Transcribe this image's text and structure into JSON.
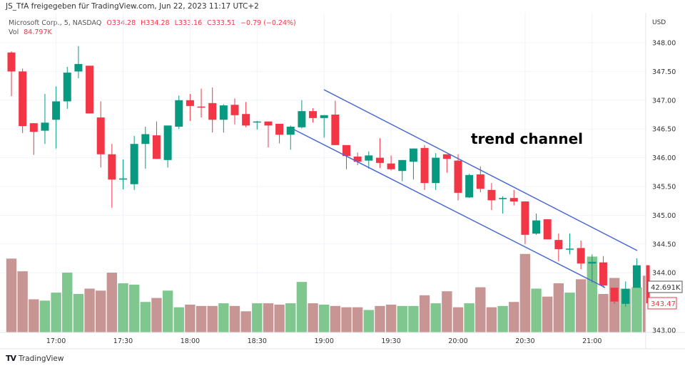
{
  "header": {
    "shared_by": "JS_TfA freigegeben für TradingView.com, Jun 22, 2023 11:17 UTC+2"
  },
  "legend": {
    "symbol": "Microsoft Corp., 5, NASDAQ",
    "open": "O334.28",
    "high": "H334.28",
    "low": "L333.16",
    "close": "C333.51",
    "change": "−0.79 (−0.24%)",
    "vol_label": "Vol",
    "vol_value": "84.797K"
  },
  "currency": "USD",
  "annotation": "trend channel",
  "price_label": "343.47",
  "volume_label": "42.691K",
  "footer": {
    "brand": "TradingView"
  },
  "colors": {
    "up": "#089981",
    "down": "#f23645",
    "vol_up": "#7fc78f",
    "vol_down": "#c89595",
    "trendline": "#4a68d0"
  },
  "chart_data": {
    "type": "candlestick",
    "ylim": [
      343.0,
      348.1
    ],
    "y_ticks": [
      "348.00",
      "347.50",
      "347.00",
      "346.50",
      "346.00",
      "345.50",
      "345.00",
      "344.50",
      "344.00",
      "343.00"
    ],
    "x_ticks": [
      {
        "label": "17:00",
        "index": 4
      },
      {
        "label": "17:30",
        "index": 10
      },
      {
        "label": "18:00",
        "index": 16
      },
      {
        "label": "18:30",
        "index": 22
      },
      {
        "label": "19:00",
        "index": 28
      },
      {
        "label": "19:30",
        "index": 34
      },
      {
        "label": "20:00",
        "index": 40
      },
      {
        "label": "20:30",
        "index": 46
      },
      {
        "label": "21:00",
        "index": 52
      }
    ],
    "ohlc": [
      [
        347.83,
        347.85,
        347.07,
        347.5
      ],
      [
        347.5,
        347.55,
        346.43,
        346.55
      ],
      [
        346.6,
        346.6,
        346.05,
        346.45
      ],
      [
        346.47,
        347.11,
        346.24,
        346.61
      ],
      [
        346.66,
        347.24,
        346.16,
        346.98
      ],
      [
        346.98,
        347.58,
        346.85,
        347.48
      ],
      [
        347.5,
        347.94,
        347.38,
        347.63
      ],
      [
        347.6,
        347.6,
        346.77,
        346.77
      ],
      [
        346.7,
        346.98,
        345.83,
        346.06
      ],
      [
        346.06,
        346.24,
        345.13,
        345.62
      ],
      [
        345.62,
        345.97,
        345.45,
        345.64
      ],
      [
        345.54,
        346.38,
        345.44,
        346.24
      ],
      [
        346.24,
        346.54,
        345.81,
        346.41
      ],
      [
        346.39,
        346.63,
        345.98,
        345.98
      ],
      [
        345.96,
        346.56,
        345.83,
        346.56
      ],
      [
        346.54,
        347.08,
        346.5,
        347.0
      ],
      [
        347.0,
        347.11,
        346.64,
        346.9
      ],
      [
        346.89,
        347.2,
        346.7,
        346.88
      ],
      [
        346.95,
        347.22,
        346.44,
        346.66
      ],
      [
        346.66,
        346.93,
        346.44,
        346.91
      ],
      [
        346.92,
        347.03,
        346.58,
        346.74
      ],
      [
        346.76,
        346.97,
        346.53,
        346.56
      ],
      [
        346.63,
        346.64,
        346.49,
        346.63
      ],
      [
        346.63,
        346.63,
        346.18,
        346.56
      ],
      [
        346.59,
        346.59,
        346.25,
        346.4
      ],
      [
        346.4,
        346.56,
        346.14,
        346.54
      ],
      [
        346.53,
        347.0,
        346.51,
        346.81
      ],
      [
        346.81,
        346.86,
        346.61,
        346.69
      ],
      [
        346.69,
        346.74,
        346.35,
        346.74
      ],
      [
        346.75,
        346.99,
        346.22,
        346.22
      ],
      [
        346.22,
        346.22,
        345.8,
        346.03
      ],
      [
        346.02,
        346.09,
        345.87,
        345.93
      ],
      [
        345.95,
        346.11,
        345.81,
        346.04
      ],
      [
        346.0,
        346.34,
        345.82,
        345.91
      ],
      [
        345.9,
        346.04,
        345.78,
        345.8
      ],
      [
        345.77,
        345.96,
        345.59,
        345.96
      ],
      [
        345.93,
        346.16,
        345.62,
        346.16
      ],
      [
        346.17,
        346.22,
        345.44,
        345.56
      ],
      [
        345.56,
        346.08,
        345.44,
        346.0
      ],
      [
        346.06,
        346.06,
        345.74,
        345.98
      ],
      [
        345.95,
        346.06,
        345.26,
        345.39
      ],
      [
        345.31,
        345.72,
        345.3,
        345.7
      ],
      [
        345.71,
        345.85,
        345.4,
        345.46
      ],
      [
        345.44,
        345.56,
        345.09,
        345.26
      ],
      [
        345.28,
        345.33,
        345.03,
        345.3
      ],
      [
        345.3,
        345.44,
        345.17,
        345.24
      ],
      [
        345.24,
        345.24,
        344.5,
        344.66
      ],
      [
        344.68,
        345.03,
        344.66,
        344.91
      ],
      [
        344.93,
        344.93,
        344.58,
        344.58
      ],
      [
        344.57,
        344.68,
        344.2,
        344.41
      ],
      [
        344.41,
        344.68,
        344.32,
        344.42
      ],
      [
        344.43,
        344.56,
        344.06,
        344.16
      ],
      [
        344.16,
        344.32,
        343.83,
        344.19
      ],
      [
        344.18,
        344.29,
        343.74,
        343.78
      ],
      [
        343.74,
        343.74,
        343.46,
        343.5
      ],
      [
        343.46,
        343.85,
        343.41,
        343.72
      ],
      [
        343.74,
        344.25,
        343.74,
        344.13
      ],
      [
        344.13,
        344.13,
        343.47,
        343.47
      ]
    ],
    "volume_k": [
      55.5,
      46,
      25,
      24,
      30,
      45,
      29,
      33,
      31.5,
      45,
      37,
      36,
      23,
      26,
      31.5,
      19,
      21,
      20,
      20,
      22,
      20,
      16,
      22,
      22,
      21,
      22,
      38,
      22,
      21,
      20,
      19,
      19,
      17,
      20,
      21,
      20,
      20,
      28,
      22,
      31,
      19,
      22,
      34,
      19,
      20,
      23,
      59,
      33,
      27,
      37,
      30,
      40,
      57,
      29,
      41,
      33,
      34,
      42.691
    ]
  }
}
